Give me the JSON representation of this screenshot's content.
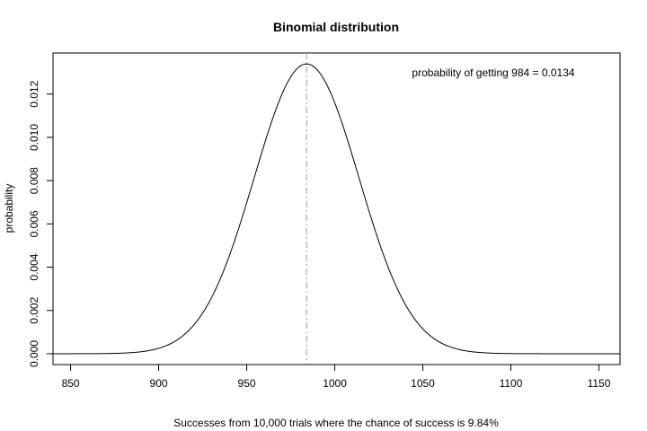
{
  "chart_data": {
    "type": "line",
    "title": "Binomial distribution",
    "xlabel": "Successes from 10,000 trials where the chance of success is 9.84%",
    "ylabel": "probability",
    "annotation": "probability of getting 984 = 0.0134",
    "xlim": [
      840,
      1162
    ],
    "ylim": [
      -0.0005,
      0.0139
    ],
    "x_ticks": [
      "850",
      "900",
      "950",
      "1000",
      "1050",
      "1100",
      "1150"
    ],
    "y_ticks": [
      "0.000",
      "0.002",
      "0.004",
      "0.006",
      "0.008",
      "0.010",
      "0.012"
    ],
    "grid": false,
    "binomial": {
      "n": 10000,
      "p": 0.0984
    },
    "peak": {
      "x": 984,
      "y": 0.0134
    },
    "series": [
      {
        "x": [
          840,
          850,
          860,
          870,
          880,
          890,
          900,
          910,
          920,
          930,
          940,
          950,
          960,
          970,
          980,
          984,
          990,
          1000,
          1010,
          1020,
          1030,
          1040,
          1050,
          1060,
          1070,
          1080,
          1090,
          1100,
          1110,
          1120,
          1130,
          1140,
          1150,
          1162
        ],
        "y": [
          0.0,
          0.0,
          0.0,
          0.0,
          0.0,
          0.0001,
          0.0002,
          0.0005,
          0.0011,
          0.0022,
          0.0039,
          0.0061,
          0.0088,
          0.0115,
          0.0132,
          0.0134,
          0.0132,
          0.0119,
          0.0096,
          0.0071,
          0.0046,
          0.0027,
          0.0014,
          0.0006,
          0.0003,
          0.0001,
          0.0,
          0.0,
          0.0,
          0.0,
          0.0,
          0.0,
          0.0,
          0.0
        ]
      }
    ],
    "colors": {
      "curve": "#000000",
      "marker_line": "#999999",
      "frame": "#000000"
    }
  }
}
